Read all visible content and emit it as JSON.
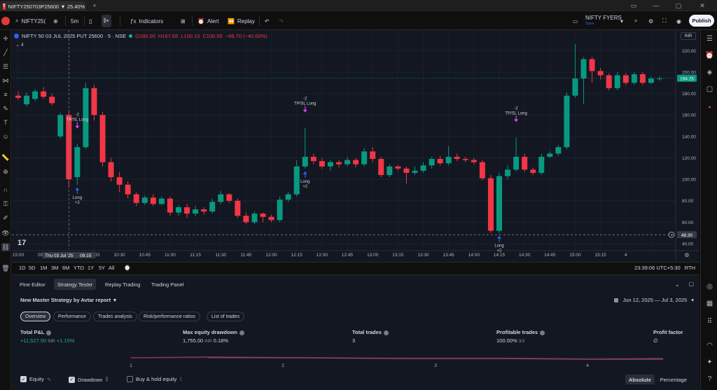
{
  "browser": {
    "tab_title": "NIFTY250703P25600 ▼ 25.40%",
    "tab_icon": "tradingview-logo-icon"
  },
  "toolbar": {
    "symbol": "NIFTY25(",
    "interval": "5m",
    "indicators": "Indicators",
    "alert": "Alert",
    "replay": "Replay",
    "broker_name": "NIFTY FYERS",
    "broker_sub": "Save",
    "publish": "Publish"
  },
  "chart": {
    "title": "NIFTY 50 03 JUL 2025 PUT 25600 · 5 · NSE",
    "ohlc": {
      "o": "O160.00",
      "h": "H167.65",
      "l": "L100.10",
      "c": "C100.50",
      "chg": "−68.70 (−40.60%)"
    },
    "collapse": "4",
    "currency": "INR",
    "last_price": "194.25",
    "crosshair_price": "48.30",
    "crosshair_time": "Thu 03 Jul '25",
    "crosshair_clock": "09:15",
    "y_ticks": [
      "220.00",
      "200.00",
      "180.00",
      "160.00",
      "140.00",
      "120.00",
      "100.00",
      "80.00",
      "60.00",
      "40.00"
    ],
    "x_ticks": [
      "15:00",
      "09:45",
      "10:00",
      "10:15",
      "10:30",
      "10:45",
      "11:00",
      "11:15",
      "11:30",
      "11:45",
      "12:00",
      "12:15",
      "12:30",
      "12:45",
      "13:00",
      "13:15",
      "13:30",
      "13:45",
      "14:00",
      "14:15",
      "14:30",
      "14:45",
      "15:00",
      "15:15",
      "4"
    ],
    "annotations": [
      {
        "top": "-2",
        "label": "TP/SL Long"
      },
      {
        "top": "-2",
        "label": "TP/SL Long"
      },
      {
        "top": "-2",
        "label": "TP/SL Long"
      }
    ],
    "entries": [
      {
        "label": "Long",
        "qty": "+2"
      },
      {
        "label": "Long",
        "qty": "+2"
      },
      {
        "label": "Long",
        "qty": "+2"
      }
    ]
  },
  "chart_data": {
    "type": "candlestick",
    "ylim": [
      40,
      230
    ],
    "up_color": "#089981",
    "down_color": "#f23645",
    "candles": [
      [
        178,
        176,
        182,
        174
      ],
      [
        170,
        178,
        181,
        168
      ],
      [
        175,
        182,
        184,
        173
      ],
      [
        182,
        177,
        186,
        175
      ],
      [
        177,
        171,
        180,
        169
      ],
      [
        140,
        160,
        162,
        138
      ],
      [
        160,
        100,
        163,
        93
      ],
      [
        102,
        130,
        133,
        95
      ],
      [
        130,
        185,
        190,
        128
      ],
      [
        185,
        160,
        188,
        155
      ],
      [
        160,
        116,
        163,
        112
      ],
      [
        116,
        102,
        120,
        98
      ],
      [
        102,
        95,
        107,
        88
      ],
      [
        95,
        86,
        98,
        82
      ],
      [
        86,
        78,
        88,
        75
      ],
      [
        78,
        83,
        85,
        76
      ],
      [
        83,
        77,
        86,
        75
      ],
      [
        77,
        82,
        84,
        76
      ],
      [
        82,
        69,
        84,
        66
      ],
      [
        69,
        74,
        76,
        66
      ],
      [
        74,
        68,
        77,
        64
      ],
      [
        68,
        72,
        75,
        66
      ],
      [
        72,
        70,
        74,
        67
      ],
      [
        70,
        79,
        82,
        68
      ],
      [
        79,
        86,
        89,
        77
      ],
      [
        86,
        80,
        87,
        78
      ],
      [
        80,
        66,
        82,
        64
      ],
      [
        66,
        60,
        69,
        58
      ],
      [
        60,
        68,
        70,
        58
      ],
      [
        68,
        65,
        69,
        60
      ],
      [
        65,
        62,
        67,
        60
      ],
      [
        62,
        81,
        84,
        60
      ],
      [
        81,
        86,
        88,
        79
      ],
      [
        86,
        112,
        118,
        84
      ],
      [
        112,
        121,
        148,
        110
      ],
      [
        121,
        117,
        124,
        114
      ],
      [
        117,
        112,
        120,
        110
      ],
      [
        112,
        116,
        118,
        108
      ],
      [
        116,
        114,
        118,
        111
      ],
      [
        114,
        118,
        121,
        112
      ],
      [
        118,
        114,
        120,
        111
      ],
      [
        114,
        126,
        129,
        112
      ],
      [
        126,
        119,
        130,
        116
      ],
      [
        119,
        104,
        121,
        102
      ],
      [
        104,
        112,
        114,
        102
      ],
      [
        112,
        110,
        113,
        108
      ],
      [
        110,
        106,
        112,
        96
      ],
      [
        106,
        108,
        112,
        104
      ],
      [
        108,
        113,
        116,
        106
      ],
      [
        113,
        119,
        121,
        110
      ],
      [
        119,
        115,
        122,
        113
      ],
      [
        115,
        121,
        131,
        113
      ],
      [
        121,
        119,
        124,
        117
      ],
      [
        119,
        118,
        121,
        116
      ],
      [
        118,
        116,
        120,
        114
      ],
      [
        116,
        101,
        118,
        99
      ],
      [
        101,
        52,
        104,
        50
      ],
      [
        52,
        103,
        106,
        50
      ],
      [
        103,
        109,
        113,
        100
      ],
      [
        109,
        121,
        139,
        107
      ],
      [
        121,
        109,
        124,
        107
      ],
      [
        109,
        106,
        111,
        104
      ],
      [
        106,
        121,
        124,
        104
      ],
      [
        121,
        124,
        126,
        120
      ],
      [
        124,
        130,
        132,
        122
      ],
      [
        130,
        178,
        181,
        128
      ],
      [
        178,
        194,
        226,
        176
      ],
      [
        194,
        212,
        214,
        170
      ],
      [
        212,
        201,
        214,
        190
      ],
      [
        201,
        197,
        204,
        193
      ],
      [
        197,
        185,
        199,
        183
      ],
      [
        185,
        197,
        200,
        183
      ],
      [
        197,
        190,
        199,
        188
      ],
      [
        190,
        198,
        200,
        188
      ],
      [
        198,
        190,
        200,
        188
      ],
      [
        190,
        194,
        196,
        189
      ],
      [
        194,
        194,
        196,
        192
      ]
    ]
  },
  "timeframes": [
    "1D",
    "5D",
    "1M",
    "3M",
    "6M",
    "YTD",
    "1Y",
    "5Y",
    "All"
  ],
  "clock": "23:39:06 UTC+5:30",
  "clock_extra": "RTH",
  "panel": {
    "tabs": [
      "Pine Editor",
      "Strategy Tester",
      "Replay Trading",
      "Trading Panel"
    ],
    "strategy": "New Master Strategy by Avtar report",
    "date_range": "Jun 12, 2025 — Jul 3, 2025",
    "subtabs": [
      "Overview",
      "Performance",
      "Trades analysis",
      "Risk/performance ratios",
      "List of trades"
    ],
    "metrics": [
      {
        "label": "Total P&L",
        "value": "+11,527.50",
        "unit": "INR",
        "extra": "+1.15%"
      },
      {
        "label": "Max equity drawdown",
        "value": "1,755.00",
        "unit": "INR",
        "extra": "0.18%"
      },
      {
        "label": "Total trades",
        "value": "3",
        "unit": "",
        "extra": ""
      },
      {
        "label": "Profitable trades",
        "value": "100.00%",
        "unit": "3/3",
        "extra": ""
      },
      {
        "label": "Profit factor",
        "value": "∅",
        "unit": "",
        "extra": ""
      }
    ],
    "equity_ticks": [
      "1",
      "2",
      "3",
      "4"
    ],
    "checkboxes": [
      {
        "label": "Equity",
        "checked": true
      },
      {
        "label": "Drawdown",
        "checked": true
      },
      {
        "label": "Buy & hold equity",
        "checked": false
      }
    ],
    "mode": {
      "absolute": "Absolute",
      "percentage": "Percentage"
    }
  }
}
